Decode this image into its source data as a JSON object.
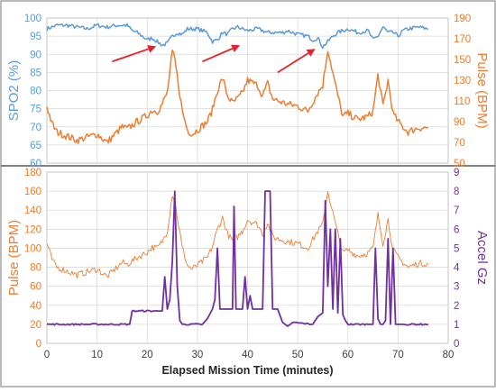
{
  "colors": {
    "spo2": "#5b9bd5",
    "pulse": "#ed7d31",
    "accel": "#7030a0",
    "arrow": "#e8202a",
    "grid": "#d9d9d9",
    "axis_text": "#404040",
    "frame": "#595959"
  },
  "chart_data": [
    {
      "type": "line",
      "panel": "top",
      "xlabel": "",
      "ylabel_left": "SPO2 (%)",
      "ylabel_right": "Pulse (BPM)",
      "xlim": [
        0,
        80
      ],
      "ylim_left": [
        60,
        100
      ],
      "ylim_right": [
        50,
        190
      ],
      "yticks_left": [
        "60",
        "65",
        "70",
        "75",
        "80",
        "85",
        "90",
        "95",
        "100"
      ],
      "yticks_right": [
        "50",
        "70",
        "90",
        "110",
        "130",
        "150",
        "170",
        "190"
      ],
      "grid": true,
      "annotations": [
        {
          "type": "arrow",
          "from": [
            13,
            88
          ],
          "to": [
            21.8,
            92.2
          ]
        },
        {
          "type": "arrow",
          "from": [
            31,
            88
          ],
          "to": [
            38.5,
            92.5
          ]
        },
        {
          "type": "arrow",
          "from": [
            46,
            85
          ],
          "to": [
            53.5,
            91.5
          ]
        }
      ],
      "series": [
        {
          "axis": "left",
          "x": [
            0,
            2,
            4,
            6,
            8,
            10,
            12,
            14,
            16,
            17,
            18,
            19,
            20,
            21,
            22,
            23,
            24,
            25,
            26,
            27,
            28,
            30,
            32,
            33,
            34,
            35,
            36,
            37,
            38,
            40,
            42,
            44,
            46,
            47,
            48,
            50,
            52,
            53,
            54,
            55,
            56,
            57,
            58,
            59,
            60,
            62,
            64,
            65,
            66,
            67,
            68,
            69,
            70,
            71,
            72,
            74,
            76
          ],
          "y": [
            97,
            98,
            98,
            97.5,
            97,
            98,
            97.5,
            98,
            98,
            96.5,
            96,
            95,
            94,
            94.5,
            93.5,
            92.5,
            93,
            95,
            96,
            95.5,
            97,
            97,
            96,
            93.5,
            94,
            96,
            95.5,
            97,
            97.5,
            96.5,
            97,
            96,
            96,
            96,
            96.5,
            95.5,
            95,
            94,
            94.5,
            92,
            93.5,
            95,
            96,
            96.5,
            97,
            96,
            96.5,
            94,
            95,
            97.5,
            96,
            96,
            95,
            96.5,
            97,
            97.5,
            97
          ]
        },
        {
          "axis": "right",
          "x": [
            0,
            1,
            2,
            4,
            6,
            8,
            10,
            12,
            14,
            15,
            16,
            18,
            20,
            21,
            22,
            23,
            24,
            25,
            25.5,
            26,
            27,
            28,
            29,
            30,
            32,
            33,
            34,
            35,
            36,
            37,
            38,
            39,
            40,
            42,
            43,
            44,
            45,
            46,
            48,
            50,
            52,
            54,
            55,
            56,
            57,
            58,
            59,
            60,
            62,
            64,
            65,
            66,
            67,
            68,
            69,
            70,
            72,
            74,
            76
          ],
          "y": [
            105,
            88,
            80,
            76,
            72,
            75,
            78,
            70,
            80,
            85,
            83,
            90,
            96,
            101,
            100,
            107,
            118,
            157,
            150,
            133,
            100,
            82,
            78,
            82,
            90,
            102,
            120,
            132,
            115,
            108,
            112,
            118,
            130,
            125,
            115,
            127,
            112,
            110,
            107,
            105,
            100,
            118,
            125,
            160,
            137,
            115,
            95,
            98,
            92,
            95,
            100,
            135,
            105,
            130,
            98,
            90,
            80,
            84,
            84
          ]
        }
      ]
    },
    {
      "type": "line",
      "panel": "bottom",
      "xlabel": "Elapsed Mission Time (minutes)",
      "ylabel_left": "Pulse (BPM)",
      "ylabel_right": "Accel Gz",
      "xlim": [
        0,
        80
      ],
      "ylim_left": [
        0,
        180
      ],
      "ylim_right": [
        0,
        9
      ],
      "xticks": [
        "0",
        "10",
        "20",
        "30",
        "40",
        "50",
        "60",
        "70",
        "80"
      ],
      "yticks_left": [
        "0",
        "20",
        "40",
        "60",
        "80",
        "100",
        "120",
        "140",
        "160",
        "180"
      ],
      "yticks_right": [
        "0",
        "1",
        "2",
        "3",
        "4",
        "5",
        "6",
        "7",
        "8",
        "9"
      ],
      "grid": true,
      "series": [
        {
          "axis": "left",
          "x": [
            0,
            1,
            2,
            4,
            6,
            8,
            10,
            12,
            14,
            15,
            16,
            18,
            20,
            21,
            22,
            23,
            24,
            25,
            25.5,
            26,
            27,
            28,
            29,
            30,
            32,
            33,
            34,
            35,
            36,
            37,
            38,
            39,
            40,
            42,
            43,
            44,
            45,
            46,
            48,
            50,
            52,
            54,
            55,
            56,
            57,
            58,
            59,
            60,
            62,
            64,
            65,
            66,
            67,
            68,
            69,
            70,
            72,
            74,
            76
          ],
          "y": [
            105,
            88,
            80,
            76,
            72,
            75,
            78,
            70,
            80,
            85,
            83,
            90,
            96,
            101,
            100,
            107,
            118,
            157,
            150,
            133,
            100,
            82,
            78,
            82,
            90,
            102,
            120,
            132,
            115,
            108,
            112,
            118,
            130,
            125,
            115,
            127,
            112,
            110,
            107,
            105,
            100,
            118,
            125,
            160,
            137,
            115,
            95,
            98,
            92,
            95,
            100,
            135,
            105,
            130,
            98,
            90,
            80,
            84,
            84
          ]
        },
        {
          "axis": "right",
          "x": [
            0,
            16.5,
            17,
            22,
            23,
            23.5,
            24,
            24.5,
            25,
            25.5,
            26,
            26.5,
            27,
            31,
            32,
            33,
            33.5,
            34,
            34.5,
            35,
            36,
            37,
            37.3,
            37.7,
            38,
            39,
            39.5,
            40,
            40.5,
            41,
            42,
            43,
            43.5,
            44.5,
            45,
            46,
            47,
            48,
            49,
            53,
            54,
            55,
            55.5,
            56,
            56.5,
            57,
            57.5,
            58,
            58.5,
            59,
            59.5,
            60,
            64,
            65,
            65.5,
            66,
            66.5,
            67,
            67.5,
            68,
            68.5,
            69,
            69.5,
            70,
            70.5,
            71,
            76
          ],
          "y": [
            1,
            1,
            1.7,
            1.7,
            1.7,
            3.5,
            1.8,
            2.3,
            4.3,
            8,
            3,
            1.2,
            1,
            1,
            1.3,
            1.8,
            2.3,
            5,
            1.8,
            1.8,
            1.8,
            1.8,
            7.2,
            1.8,
            1.8,
            1.8,
            3.5,
            1.8,
            2.5,
            1.8,
            1.8,
            1.8,
            8,
            8,
            1.8,
            1.8,
            1.1,
            0.9,
            1.1,
            1,
            1.4,
            1.6,
            7.5,
            3,
            6,
            1.8,
            6,
            1.6,
            5.5,
            1.5,
            1.2,
            1,
            1,
            1,
            5,
            1.3,
            1,
            1,
            1.2,
            5.5,
            1,
            5,
            1,
            1,
            1,
            1,
            1
          ]
        }
      ]
    }
  ]
}
